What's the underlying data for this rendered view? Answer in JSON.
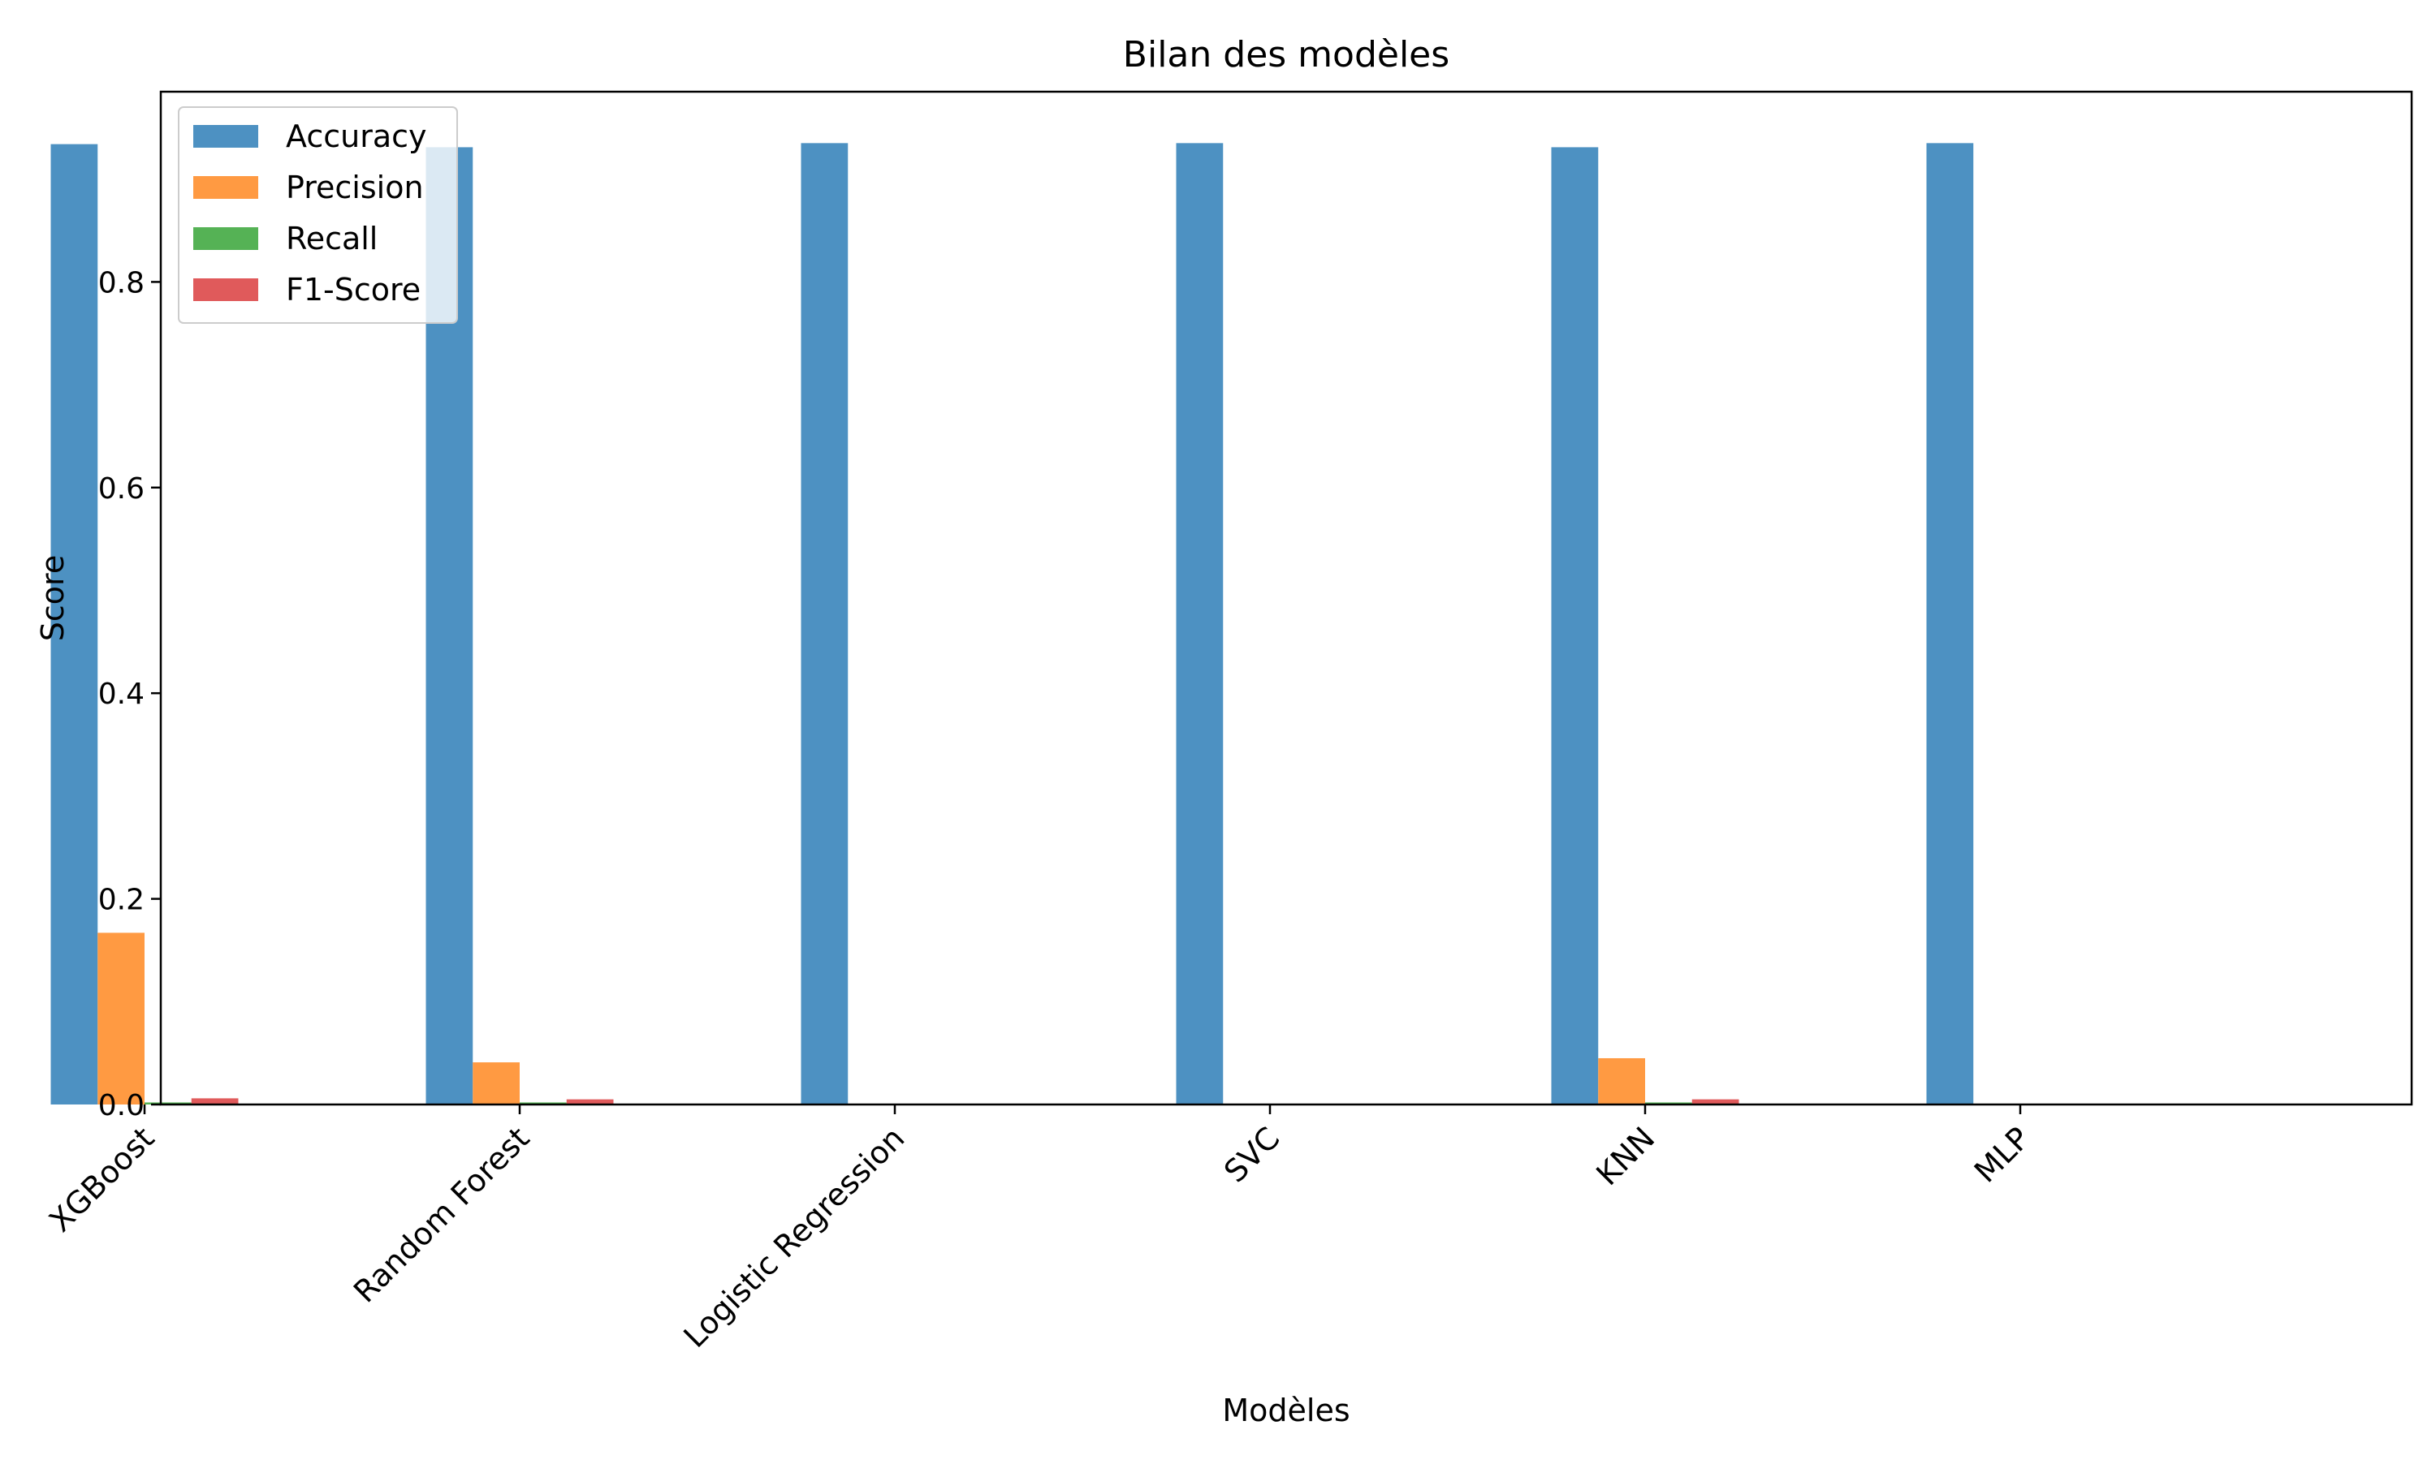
{
  "chart_data": {
    "type": "bar",
    "title": "Bilan des modèles",
    "xlabel": "Modèles",
    "ylabel": "Score",
    "ylim": [
      0,
      0.985
    ],
    "yticks": [
      0.0,
      0.2,
      0.4,
      0.6,
      0.8
    ],
    "ytick_labels": [
      "0.0",
      "0.2",
      "0.4",
      "0.6",
      "0.8"
    ],
    "categories": [
      "XGBoost",
      "Random Forest",
      "Logistic Regression",
      "SVC",
      "KNN",
      "MLP"
    ],
    "series": [
      {
        "name": "Accuracy",
        "color": "#4d91c2",
        "values": [
          0.934,
          0.931,
          0.935,
          0.935,
          0.931,
          0.935
        ]
      },
      {
        "name": "Precision",
        "color": "#ff9a42",
        "values": [
          0.167,
          0.041,
          0.0,
          0.0,
          0.045,
          0.0
        ]
      },
      {
        "name": "Recall",
        "color": "#55b255",
        "values": [
          0.002,
          0.002,
          0.0,
          0.0,
          0.002,
          0.0
        ]
      },
      {
        "name": "F1-Score",
        "color": "#e05a5b",
        "values": [
          0.006,
          0.005,
          0.0,
          0.0,
          0.005,
          0.0
        ]
      }
    ],
    "legend_position": "top-left",
    "grid": false,
    "xtick_rotation": 45
  }
}
